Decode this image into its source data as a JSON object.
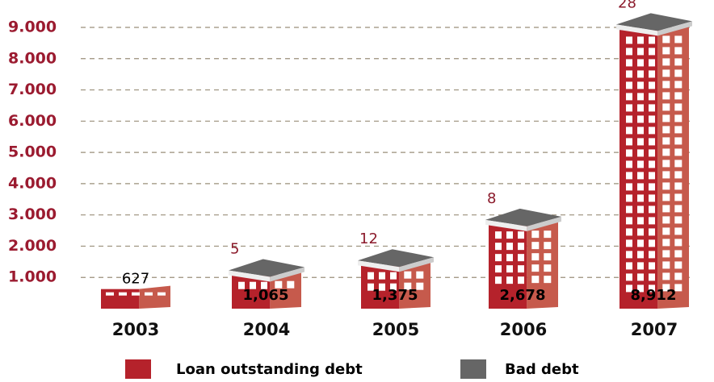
{
  "chart_data": {
    "type": "bar",
    "stacked": true,
    "categories": [
      "2003",
      "2004",
      "2005",
      "2006",
      "2007"
    ],
    "series": [
      {
        "name": "Loan outstanding debt",
        "color": "#b5222b",
        "values": [
          627,
          1065,
          1375,
          2678,
          8912
        ],
        "value_labels": [
          "627",
          "1,065",
          "1,375",
          "2,678",
          "8,912"
        ]
      },
      {
        "name": "Bad debt",
        "color": "#666666",
        "values": [
          null,
          5,
          12,
          8,
          28
        ]
      }
    ],
    "ylim": [
      0,
      9000
    ],
    "yticks": [
      {
        "value": 1000,
        "label": "1.000"
      },
      {
        "value": 2000,
        "label": "2.000"
      },
      {
        "value": 3000,
        "label": "3.000"
      },
      {
        "value": 4000,
        "label": "4.000"
      },
      {
        "value": 5000,
        "label": "5.000"
      },
      {
        "value": 6000,
        "label": "6.000"
      },
      {
        "value": 7000,
        "label": "7.000"
      },
      {
        "value": 8000,
        "label": "8.000"
      },
      {
        "value": 9000,
        "label": "9.000"
      }
    ],
    "grid": true
  }
}
